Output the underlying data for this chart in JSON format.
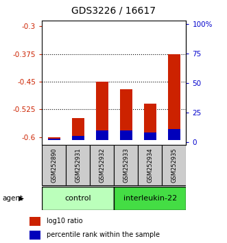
{
  "title": "GDS3226 / 16617",
  "samples": [
    "GSM252890",
    "GSM252931",
    "GSM252932",
    "GSM252933",
    "GSM252934",
    "GSM252935"
  ],
  "log10_ratio": [
    -0.6,
    -0.548,
    -0.45,
    -0.47,
    -0.51,
    -0.376
  ],
  "percentile_rank": [
    1.5,
    3.5,
    8.5,
    8.0,
    6.5,
    9.5
  ],
  "bar_bottom": -0.608,
  "ylim_left": [
    -0.62,
    -0.285
  ],
  "ylim_right": [
    -2,
    103
  ],
  "yticks_left": [
    -0.6,
    -0.525,
    -0.45,
    -0.375,
    -0.3
  ],
  "yticks_right": [
    0,
    25,
    50,
    75,
    100
  ],
  "ytick_labels_left": [
    "-0.6",
    "-0.525",
    "-0.45",
    "-0.375",
    "-0.3"
  ],
  "ytick_labels_right": [
    "0",
    "25",
    "50",
    "75",
    "100%"
  ],
  "grid_ticks": [
    -0.525,
    -0.45,
    -0.375
  ],
  "left_axis_color": "#cc2200",
  "right_axis_color": "#0000cc",
  "bar_color_red": "#cc2200",
  "bar_color_blue": "#0000bb",
  "control_color": "#bbffbb",
  "interleukin_color": "#44dd44",
  "sample_bg_color": "#cccccc",
  "bar_width": 0.5,
  "legend_red_label": "log10 ratio",
  "legend_blue_label": "percentile rank within the sample"
}
